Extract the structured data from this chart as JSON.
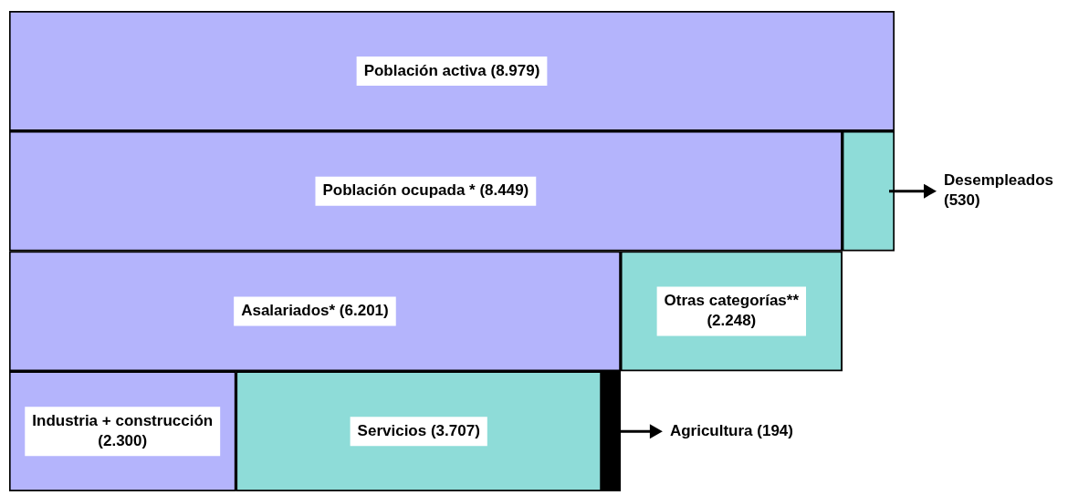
{
  "chart_data": {
    "type": "bar",
    "orientation": "horizontal",
    "stacked": true,
    "categories": [
      null,
      null,
      null,
      null
    ],
    "series": [
      {
        "color": "#b4b4fc",
        "values": [
          8979,
          8449,
          6201,
          2300
        ],
        "value_labels": [
          "Población activa (8.979)",
          "Población ocupada * (8.449)",
          "Asalariados* (6.201)",
          "Industria + construcción (2.300)"
        ]
      },
      {
        "color": "#8edcd8",
        "values": [
          null,
          530,
          2248,
          3707
        ],
        "value_labels": [
          null,
          "Desempleados (530)",
          "Otras categorías** (2.248)",
          "Servicios (3.707)"
        ]
      },
      {
        "color": "#000000",
        "values": [
          null,
          null,
          null,
          194
        ],
        "value_labels": [
          null,
          null,
          null,
          "Agricultura (194)"
        ]
      }
    ],
    "legend": false,
    "tick_labels": false
  }
}
